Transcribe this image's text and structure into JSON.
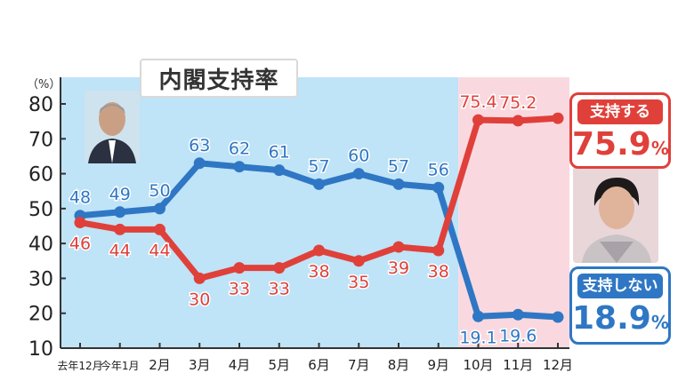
{
  "title": "内閣支持率",
  "unit_label": "（%）",
  "legend": {
    "approve_label": "支持する",
    "approve_value": "75.9",
    "disapprove_label": "支持しない",
    "disapprove_value": "18.9",
    "percent": "%"
  },
  "colors": {
    "approve": "#e0403a",
    "disapprove": "#2f77c4",
    "bg_left": "#bfe3f7",
    "bg_right": "#f9d9df"
  },
  "chart_data": {
    "type": "line",
    "categories": [
      "去年12月",
      "今年1月",
      "2月",
      "3月",
      "4月",
      "5月",
      "6月",
      "7月",
      "8月",
      "9月",
      "10月",
      "11月",
      "12月"
    ],
    "series": [
      {
        "name": "支持しない",
        "color": "#2f77c4",
        "values": [
          48,
          49,
          50,
          63,
          62,
          61,
          57,
          60,
          57,
          56,
          19.1,
          19.6,
          18.9
        ],
        "labels": [
          "48",
          "49",
          "50",
          "63",
          "62",
          "61",
          "57",
          "60",
          "57",
          "56",
          "19.1",
          "19.6",
          ""
        ]
      },
      {
        "name": "支持する",
        "color": "#e0403a",
        "values": [
          46,
          44,
          44,
          30,
          33,
          33,
          38,
          35,
          39,
          38,
          75.4,
          75.2,
          75.9
        ],
        "labels": [
          "46",
          "44",
          "44",
          "30",
          "33",
          "33",
          "38",
          "35",
          "39",
          "38",
          "75.4",
          "75.2",
          ""
        ]
      }
    ],
    "ylim": [
      10,
      80
    ],
    "yticks": [
      10,
      20,
      30,
      40,
      50,
      60,
      70,
      80
    ],
    "grid": false,
    "background_split_after_index": 9
  }
}
